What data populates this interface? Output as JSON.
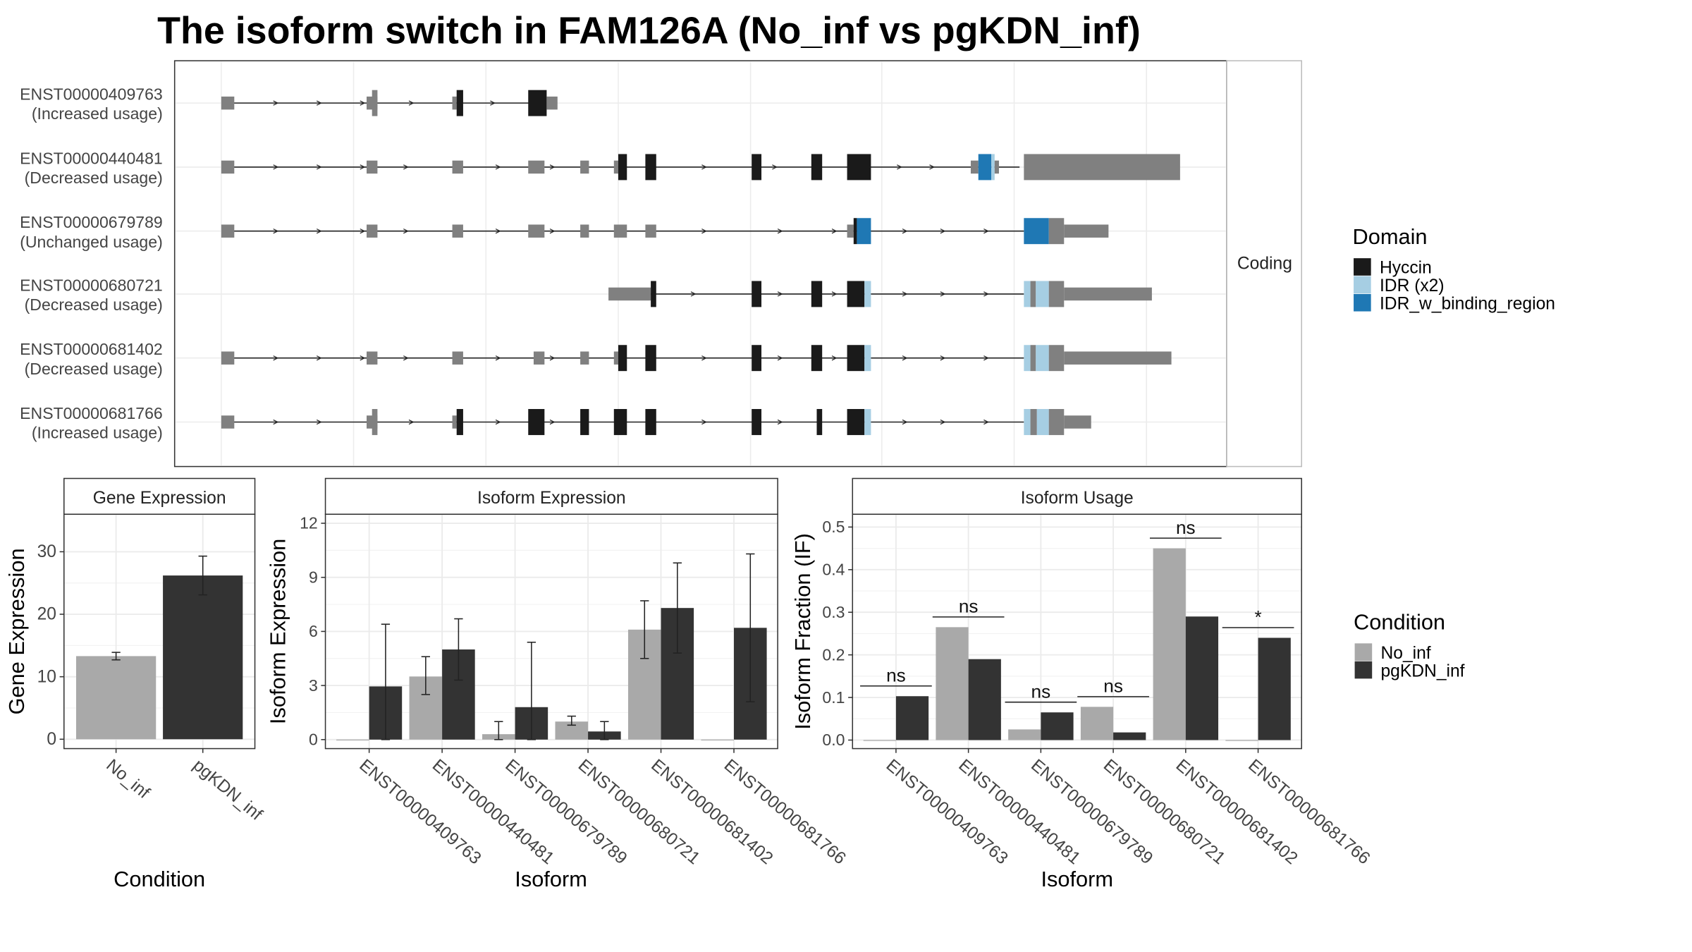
{
  "title": "The isoform switch in FAM126A (No_inf vs pgKDN_inf)",
  "colors": {
    "hyccin": "#1a1a1a",
    "idr_x2": "#a6cee3",
    "idr_binding": "#1f78b4",
    "exon": "#808080",
    "no_inf": "#a9a9a9",
    "pgkdn_inf": "#333333"
  },
  "structure": {
    "facet_label": "Coding",
    "legend_title": "Domain",
    "legend": [
      {
        "label": "Hyccin",
        "color_key": "hyccin"
      },
      {
        "label": "IDR (x2)",
        "color_key": "idr_x2"
      },
      {
        "label": "IDR_w_binding_region",
        "color_key": "idr_binding"
      }
    ],
    "isoforms": [
      {
        "id": "ENST00000409763",
        "usage": "(Increased usage)"
      },
      {
        "id": "ENST00000440481",
        "usage": "(Decreased usage)"
      },
      {
        "id": "ENST00000679789",
        "usage": "(Unchanged usage)"
      },
      {
        "id": "ENST00000680721",
        "usage": "(Decreased usage)"
      },
      {
        "id": "ENST00000681402",
        "usage": "(Decreased usage)"
      },
      {
        "id": "ENST00000681766",
        "usage": "(Increased usage)"
      }
    ]
  },
  "chart_data": [
    {
      "type": "bar",
      "strip": "Gene Expression",
      "xlabel": "Condition",
      "ylabel": "Gene Expression",
      "categories": [
        "No_inf",
        "pgKDN_inf"
      ],
      "values": [
        13.3,
        26.2
      ],
      "error": [
        [
          12.7,
          13.9
        ],
        [
          23.1,
          29.3
        ]
      ],
      "ylim": [
        -1.5,
        36
      ],
      "yticks": [
        "0",
        "10",
        "20",
        "30"
      ]
    },
    {
      "type": "bar",
      "strip": "Isoform Expression",
      "xlabel": "Isoform",
      "ylabel": "Isoform Expression",
      "categories": [
        "ENST00000409763",
        "ENST00000440481",
        "ENST00000679789",
        "ENST00000680721",
        "ENST00000681402",
        "ENST00000681766"
      ],
      "series": [
        {
          "name": "No_inf",
          "values": [
            0,
            3.5,
            0.3,
            1.0,
            6.1,
            0
          ],
          "error": [
            [
              0,
              0
            ],
            [
              2.5,
              4.6
            ],
            [
              0,
              1.0
            ],
            [
              0.8,
              1.3
            ],
            [
              4.5,
              7.7
            ],
            [
              0,
              0
            ]
          ]
        },
        {
          "name": "pgKDN_inf",
          "values": [
            2.95,
            5.0,
            1.8,
            0.45,
            7.3,
            6.2
          ],
          "error": [
            [
              0,
              6.4
            ],
            [
              3.3,
              6.7
            ],
            [
              0,
              5.4
            ],
            [
              0,
              1.0
            ],
            [
              4.8,
              9.8
            ],
            [
              2.1,
              10.3
            ]
          ]
        }
      ],
      "ylim": [
        -0.5,
        12.5
      ],
      "yticks": [
        "0",
        "3",
        "6",
        "9",
        "12"
      ]
    },
    {
      "type": "bar",
      "strip": "Isoform Usage",
      "xlabel": "Isoform",
      "ylabel": "Isoform Fraction (IF)",
      "categories": [
        "ENST00000409763",
        "ENST00000440481",
        "ENST00000679789",
        "ENST00000680721",
        "ENST00000681402",
        "ENST00000681766"
      ],
      "series": [
        {
          "name": "No_inf",
          "values": [
            0,
            0.265,
            0.025,
            0.078,
            0.45,
            0
          ]
        },
        {
          "name": "pgKDN_inf",
          "values": [
            0.103,
            0.19,
            0.065,
            0.018,
            0.29,
            0.24
          ]
        }
      ],
      "significance": [
        {
          "label": "ns",
          "y": 0.127
        },
        {
          "label": "ns",
          "y": 0.289
        },
        {
          "label": "ns",
          "y": 0.089
        },
        {
          "label": "ns",
          "y": 0.102
        },
        {
          "label": "ns",
          "y": 0.474
        },
        {
          "label": "*",
          "y": 0.264
        }
      ],
      "ylim": [
        -0.02,
        0.53
      ],
      "yticks": [
        "0.0",
        "0.1",
        "0.2",
        "0.3",
        "0.4",
        "0.5"
      ]
    }
  ],
  "condition_legend": {
    "title": "Condition",
    "items": [
      {
        "label": "No_inf",
        "color_key": "no_inf"
      },
      {
        "label": "pgKDN_inf",
        "color_key": "pgkdn_inf"
      }
    ]
  }
}
